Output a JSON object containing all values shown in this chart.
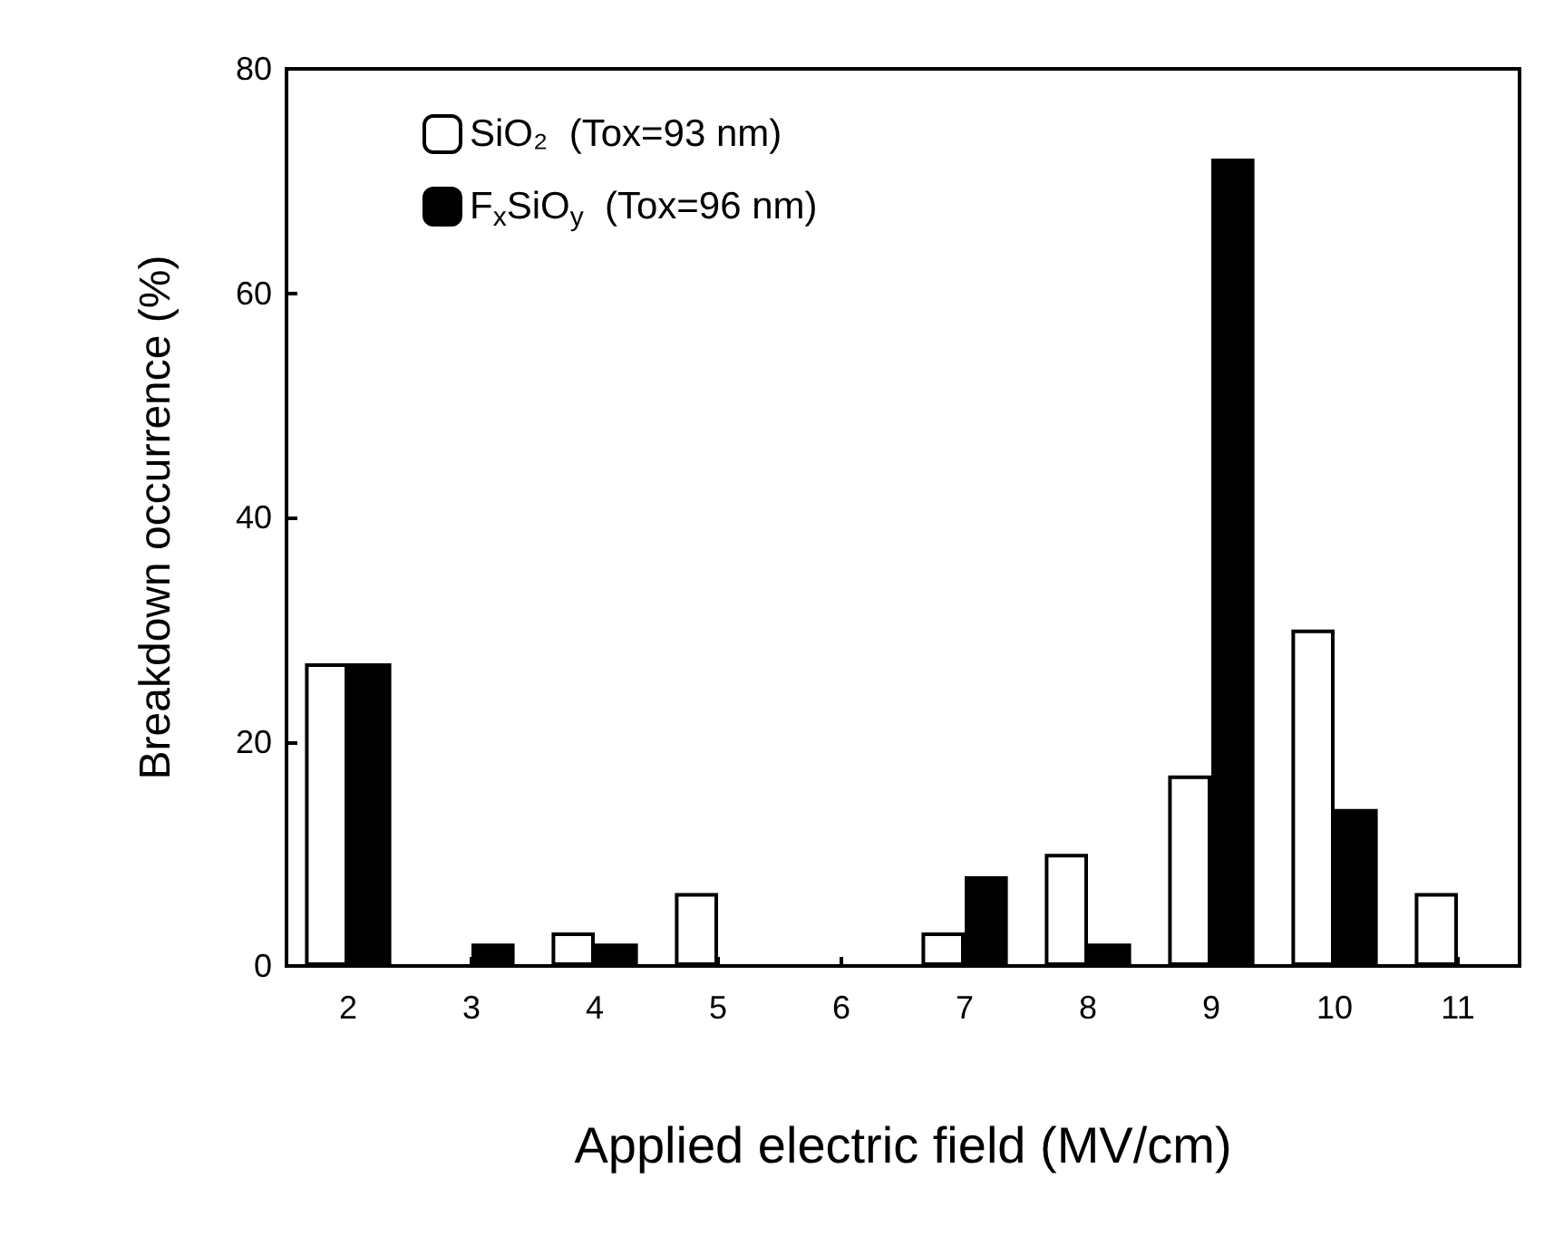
{
  "chart_data": {
    "type": "bar",
    "xlabel": "Applied electric field (MV/cm)",
    "ylabel": "Breakdown occurrence (%)",
    "categories": [
      "2",
      "3",
      "4",
      "5",
      "6",
      "7",
      "8",
      "9",
      "10",
      "11"
    ],
    "series": [
      {
        "name": "SiO₂  (Tox=93 nm)",
        "color": "#ffffff",
        "values": [
          27,
          0,
          3,
          6.5,
          0,
          3,
          10,
          17,
          30,
          6.5
        ]
      },
      {
        "name": "F$_{x}$SiO$_{y}$  (Tox=96 nm)",
        "color": "#000000",
        "values": [
          27,
          2,
          2,
          0,
          0,
          8,
          2,
          72,
          14,
          0
        ]
      }
    ],
    "ylim": [
      0,
      80
    ],
    "yticks": [
      0,
      20,
      40,
      60,
      80
    ],
    "grid": false,
    "legend": "top left"
  }
}
